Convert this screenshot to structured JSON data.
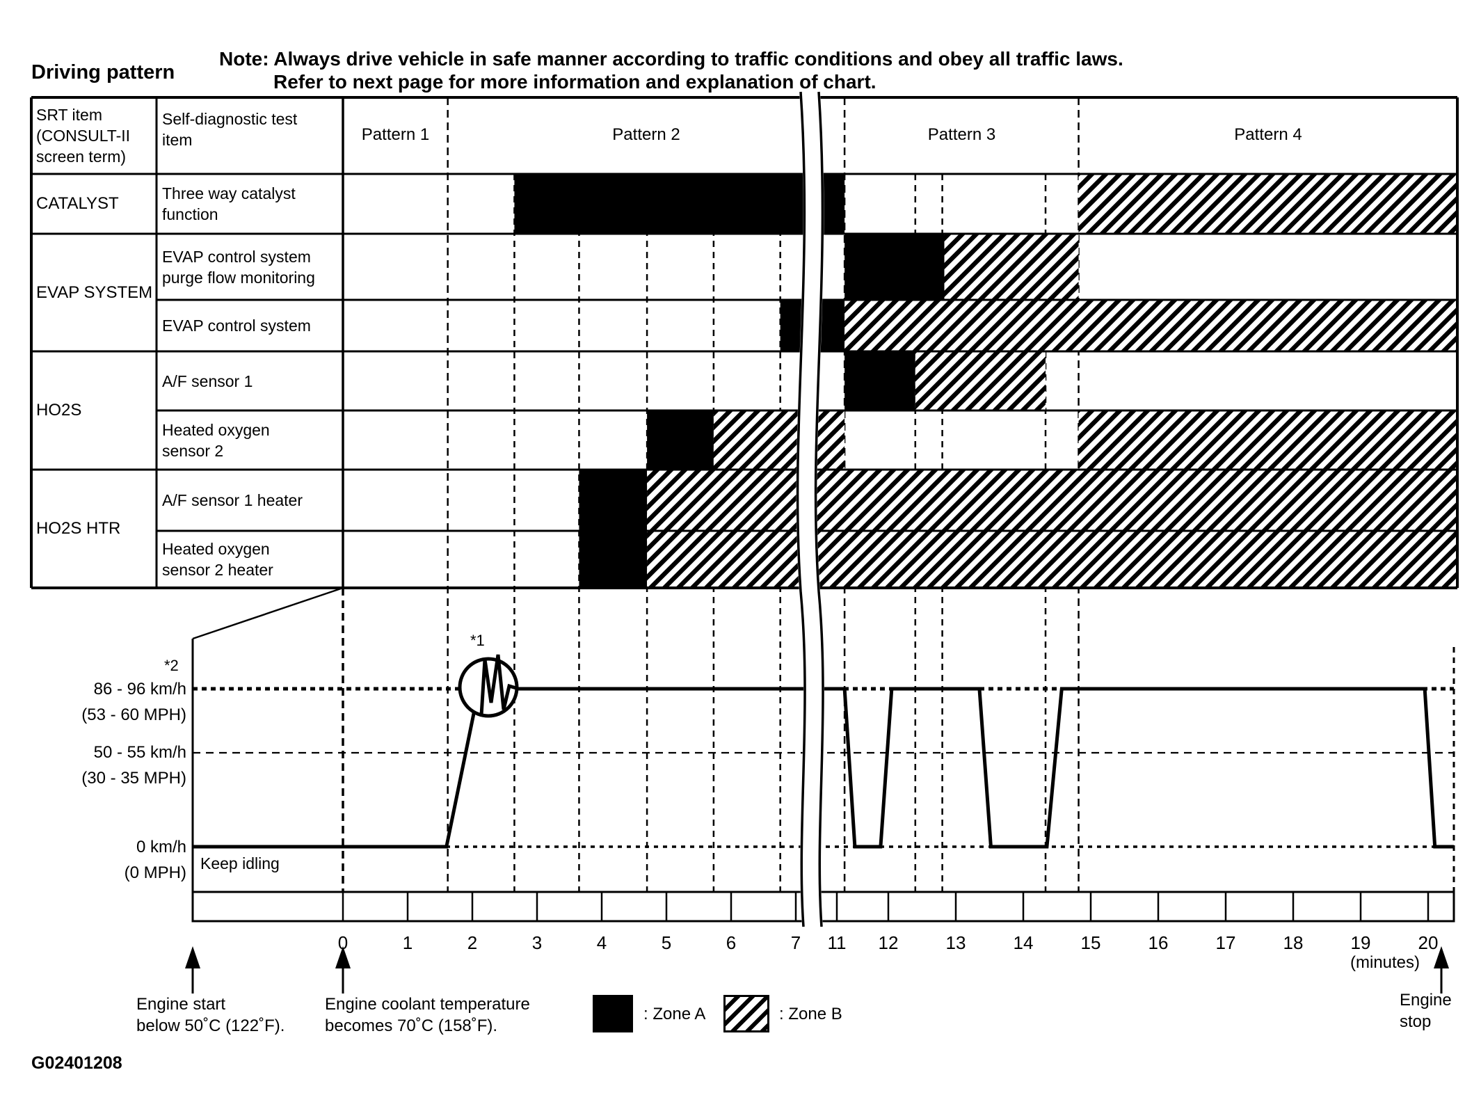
{
  "title": "Driving pattern",
  "note": {
    "line1": "Note: Always drive vehicle in safe manner according to traffic conditions and obey all traffic laws.",
    "line2": "Refer to next page for more information and explanation of chart."
  },
  "colors": {
    "ink": "#000000",
    "paper": "#ffffff"
  },
  "table": {
    "col1_header": "SRT item\n(CONSULT-II\nscreen term)",
    "col2_header": "Self-diagnostic test\nitem",
    "patterns": [
      "Pattern 1",
      "Pattern 2",
      "Pattern 3",
      "Pattern 4"
    ],
    "groups": [
      {
        "label": "CATALYST",
        "rows": [
          0,
          1
        ]
      },
      {
        "label": "EVAP SYSTEM",
        "rows": [
          1,
          3
        ]
      },
      {
        "label": "HO2S",
        "rows": [
          3,
          5
        ]
      },
      {
        "label": "HO2S HTR",
        "rows": [
          5,
          7
        ]
      }
    ],
    "rows": [
      {
        "label": "Three way catalyst\nfunction",
        "zones": [
          {
            "zone": "A",
            "from": 2.65,
            "to": 11.15
          },
          {
            "zone": "B",
            "from": 14.82,
            "to": 20.43
          }
        ]
      },
      {
        "label": "EVAP control system\npurge flow monitoring",
        "zones": [
          {
            "zone": "A",
            "from": 11.15,
            "to": 12.83
          },
          {
            "zone": "B",
            "from": 12.83,
            "to": 14.82
          }
        ]
      },
      {
        "label": "EVAP control system",
        "zones": [
          {
            "zone": "A",
            "from": 6.76,
            "to": 11.15
          },
          {
            "zone": "B",
            "from": 11.15,
            "to": 20.43
          }
        ]
      },
      {
        "label": "A/F sensor 1",
        "zones": [
          {
            "zone": "A",
            "from": 11.15,
            "to": 12.4
          },
          {
            "zone": "B",
            "from": 12.4,
            "to": 14.33
          }
        ]
      },
      {
        "label": "Heated oxygen\nsensor 2",
        "zones": [
          {
            "zone": "A",
            "from": 4.7,
            "to": 5.73
          },
          {
            "zone": "B",
            "from": 5.73,
            "to": 11.15
          },
          {
            "zone": "B",
            "from": 14.82,
            "to": 20.43
          }
        ]
      },
      {
        "label": "A/F sensor 1 heater",
        "zones": [
          {
            "zone": "A",
            "from": 3.65,
            "to": 4.7
          },
          {
            "zone": "B",
            "from": 4.7,
            "to": 20.43
          }
        ]
      },
      {
        "label": "Heated oxygen\nsensor 2 heater",
        "zones": [
          {
            "zone": "A",
            "from": 3.65,
            "to": 4.7
          },
          {
            "zone": "B",
            "from": 4.7,
            "to": 20.43
          }
        ]
      }
    ]
  },
  "graph": {
    "speed_labels": [
      {
        "level": "high",
        "text": "86 - 96 km/h\n(53 - 60 MPH)"
      },
      {
        "level": "mid",
        "text": "50 - 55 km/h\n(30 - 35 MPH)"
      },
      {
        "level": "zero",
        "text": "0 km/h\n(0 MPH)"
      }
    ],
    "footnote1": "*1",
    "footnote2": "*2",
    "keep_idling": "Keep idling",
    "trace": [
      {
        "t": -2.32,
        "level": "zero"
      },
      {
        "t": 1.6,
        "level": "zero"
      },
      {
        "t": 2.1,
        "level": "high"
      },
      {
        "t": 11.15,
        "level": "high"
      },
      {
        "t": 11.35,
        "level": "zero"
      },
      {
        "t": 11.85,
        "level": "zero"
      },
      {
        "t": 12.05,
        "level": "high"
      },
      {
        "t": 13.35,
        "level": "high"
      },
      {
        "t": 13.52,
        "level": "zero"
      },
      {
        "t": 14.35,
        "level": "zero"
      },
      {
        "t": 14.57,
        "level": "high"
      },
      {
        "t": 19.95,
        "level": "high"
      },
      {
        "t": 20.1,
        "level": "zero"
      },
      {
        "t": 20.38,
        "level": "zero"
      }
    ]
  },
  "gridlines": {
    "pattern_boundaries_t": [
      1.62,
      11.15,
      14.82
    ],
    "minor_t": [
      2.65,
      3.65,
      4.7,
      5.73,
      6.76,
      12.4,
      12.8,
      14.33
    ],
    "time_zero_t": 0
  },
  "axis": {
    "ticks": [
      0,
      1,
      2,
      3,
      4,
      5,
      6,
      7,
      11,
      12,
      13,
      14,
      15,
      16,
      17,
      18,
      19,
      20
    ],
    "minutes_label": "(minutes)"
  },
  "annotations": {
    "engine_start": "Engine start\nbelow 50˚C (122˚F).",
    "coolant": "Engine coolant temperature\nbecomes 70˚C (158˚F).",
    "zone_a": ": Zone A",
    "zone_b": ": Zone B",
    "engine_stop": "Engine\nstop"
  },
  "footer_code": "G02401208"
}
